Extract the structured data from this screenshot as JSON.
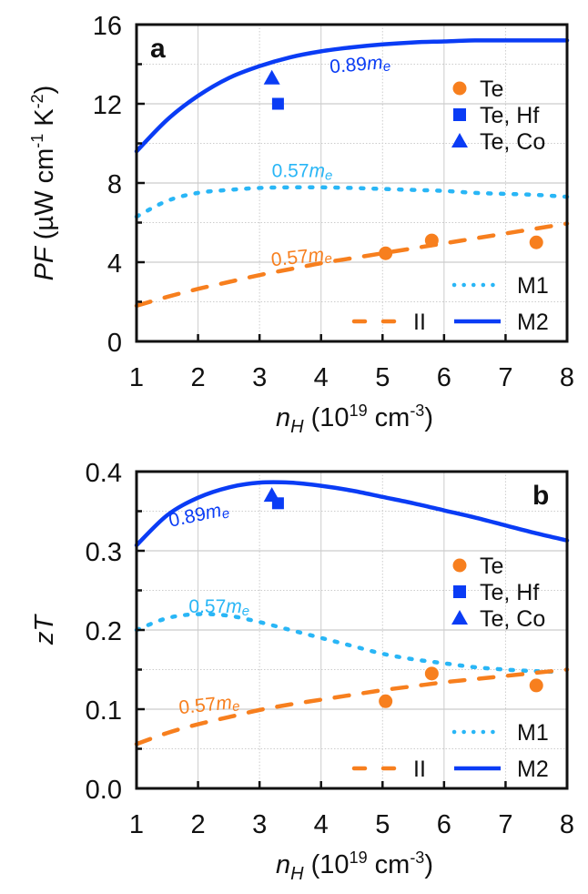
{
  "colors": {
    "ii": "#f77f1e",
    "m1": "#29b6f6",
    "m2": "#0a3cf5",
    "te": "#f77f1e",
    "te_hf": "#0a3cf5",
    "te_co": "#0a3cf5",
    "grid": "#cccccc",
    "axis": "#111111"
  },
  "chart_data": [
    {
      "type": "line",
      "panel_label": "a",
      "title": "",
      "xlabel": "n_H (10^19 cm^-3)",
      "xlabel_parts": {
        "var": "n",
        "sub": "H",
        "unit_pre": " (10",
        "unit_sup1": "19",
        "unit_mid": " cm",
        "unit_sup2": "-3",
        "unit_post": ")"
      },
      "ylabel": "PF (µW cm^-1 K^-2)",
      "ylabel_parts": {
        "var": "PF",
        "pre": " (µW cm",
        "sup1": "-1",
        "mid": " K",
        "sup2": "-2",
        "post": ")"
      },
      "xlim": [
        1,
        8
      ],
      "ylim": [
        0,
        16
      ],
      "xticks": [
        1,
        2,
        3,
        4,
        5,
        6,
        7,
        8
      ],
      "yticks": [
        0,
        4,
        8,
        12,
        16
      ],
      "ytick_labels": [
        "0",
        "4",
        "8",
        "12",
        "16"
      ],
      "grid": true,
      "series": [
        {
          "name": "M2",
          "style": "solid",
          "color_key": "m2",
          "x": [
            1,
            1.5,
            2,
            2.5,
            3,
            3.5,
            4,
            4.5,
            5,
            5.5,
            6,
            6.5,
            7,
            7.5,
            8
          ],
          "y": [
            9.6,
            11.2,
            12.4,
            13.3,
            13.9,
            14.35,
            14.65,
            14.85,
            15.0,
            15.1,
            15.15,
            15.2,
            15.2,
            15.2,
            15.2
          ]
        },
        {
          "name": "M1",
          "style": "dotted",
          "color_key": "m1",
          "x": [
            1,
            1.5,
            2,
            2.5,
            3,
            3.5,
            4,
            4.5,
            5,
            5.5,
            6,
            6.5,
            7,
            7.5,
            8
          ],
          "y": [
            6.3,
            7.1,
            7.5,
            7.65,
            7.75,
            7.78,
            7.78,
            7.75,
            7.7,
            7.65,
            7.6,
            7.5,
            7.45,
            7.4,
            7.3
          ]
        },
        {
          "name": "II",
          "style": "dashed",
          "color_key": "ii",
          "x": [
            1,
            1.5,
            2,
            2.5,
            3,
            3.5,
            4,
            4.5,
            5,
            5.5,
            6,
            6.5,
            7,
            7.5,
            8
          ],
          "y": [
            1.8,
            2.25,
            2.65,
            3.0,
            3.35,
            3.65,
            3.95,
            4.2,
            4.45,
            4.7,
            4.95,
            5.2,
            5.45,
            5.7,
            5.95
          ]
        }
      ],
      "points": [
        {
          "name": "Te",
          "marker": "circle",
          "color_key": "te",
          "x": [
            5.05,
            5.8,
            7.5
          ],
          "y": [
            4.45,
            5.1,
            5.0
          ]
        },
        {
          "name": "Te, Hf",
          "marker": "square",
          "color_key": "te_hf",
          "x": [
            3.3
          ],
          "y": [
            12.0
          ]
        },
        {
          "name": "Te, Co",
          "marker": "triangle",
          "color_key": "te_co",
          "x": [
            3.2
          ],
          "y": [
            13.3
          ]
        }
      ],
      "annotations": [
        {
          "text": "0.89",
          "sub_text": "m",
          "sub_e": "e",
          "color_key": "m2",
          "x": 4.15,
          "y": 13.55,
          "rotate": -5
        },
        {
          "text": "0.57",
          "sub_text": "m",
          "sub_e": "e",
          "color_key": "m1",
          "x": 3.2,
          "y": 8.3,
          "rotate": 0
        },
        {
          "text": "0.57",
          "sub_text": "m",
          "sub_e": "e",
          "color_key": "ii",
          "x": 3.2,
          "y": 3.8,
          "rotate": -6
        }
      ],
      "legend_points": [
        "Te",
        "Te, Hf",
        "Te, Co"
      ],
      "legend_lines": [
        "II",
        "M1",
        "M2"
      ],
      "legend_placement": "right"
    },
    {
      "type": "line",
      "panel_label": "b",
      "title": "",
      "xlabel": "n_H (10^19 cm^-3)",
      "xlabel_parts": {
        "var": "n",
        "sub": "H",
        "unit_pre": " (10",
        "unit_sup1": "19",
        "unit_mid": " cm",
        "unit_sup2": "-3",
        "unit_post": ")"
      },
      "ylabel": "zT",
      "xlim": [
        1,
        8
      ],
      "ylim": [
        0,
        0.4
      ],
      "xticks": [
        1,
        2,
        3,
        4,
        5,
        6,
        7,
        8
      ],
      "yticks": [
        0,
        0.1,
        0.2,
        0.3,
        0.4
      ],
      "ytick_labels": [
        "0.0",
        "0.1",
        "0.2",
        "0.3",
        "0.4"
      ],
      "grid": true,
      "series": [
        {
          "name": "M2",
          "style": "solid",
          "color_key": "m2",
          "x": [
            1,
            1.5,
            2,
            2.5,
            3,
            3.5,
            4,
            4.5,
            5,
            5.5,
            6,
            6.5,
            7,
            7.5,
            8
          ],
          "y": [
            0.307,
            0.345,
            0.367,
            0.38,
            0.386,
            0.386,
            0.382,
            0.376,
            0.368,
            0.36,
            0.351,
            0.342,
            0.332,
            0.322,
            0.313
          ]
        },
        {
          "name": "M1",
          "style": "dotted",
          "color_key": "m1",
          "x": [
            1,
            1.5,
            2,
            2.5,
            3,
            3.5,
            4,
            4.5,
            5,
            5.5,
            6,
            6.5,
            7,
            7.5,
            7.9
          ],
          "y": [
            0.2,
            0.215,
            0.22,
            0.218,
            0.21,
            0.2,
            0.19,
            0.18,
            0.17,
            0.163,
            0.158,
            0.153,
            0.15,
            0.148,
            0.147
          ]
        },
        {
          "name": "II",
          "style": "dashed",
          "color_key": "ii",
          "x": [
            1,
            1.5,
            2,
            2.5,
            3,
            3.5,
            4,
            4.5,
            5,
            5.5,
            6,
            6.5,
            7,
            7.5,
            8
          ],
          "y": [
            0.056,
            0.07,
            0.081,
            0.09,
            0.099,
            0.106,
            0.112,
            0.118,
            0.124,
            0.129,
            0.134,
            0.138,
            0.142,
            0.146,
            0.15
          ]
        }
      ],
      "points": [
        {
          "name": "Te",
          "marker": "circle",
          "color_key": "te",
          "x": [
            5.05,
            5.8,
            7.5
          ],
          "y": [
            0.11,
            0.145,
            0.13
          ]
        },
        {
          "name": "Te, Hf",
          "marker": "square",
          "color_key": "te_hf",
          "x": [
            3.3
          ],
          "y": [
            0.36
          ]
        },
        {
          "name": "Te, Co",
          "marker": "triangle",
          "color_key": "te_co",
          "x": [
            3.2
          ],
          "y": [
            0.37
          ]
        }
      ],
      "annotations": [
        {
          "text": "0.89",
          "sub_text": "m",
          "sub_e": "e",
          "color_key": "m2",
          "x": 1.55,
          "y": 0.33,
          "rotate": -12
        },
        {
          "text": "0.57",
          "sub_text": "m",
          "sub_e": "e",
          "color_key": "m1",
          "x": 1.85,
          "y": 0.222,
          "rotate": 0
        },
        {
          "text": "0.57",
          "sub_text": "m",
          "sub_e": "e",
          "color_key": "ii",
          "x": 1.7,
          "y": 0.094,
          "rotate": -6
        }
      ],
      "legend_points": [
        "Te",
        "Te, Hf",
        "Te, Co"
      ],
      "legend_lines": [
        "II",
        "M1",
        "M2"
      ],
      "legend_placement": "right"
    }
  ]
}
